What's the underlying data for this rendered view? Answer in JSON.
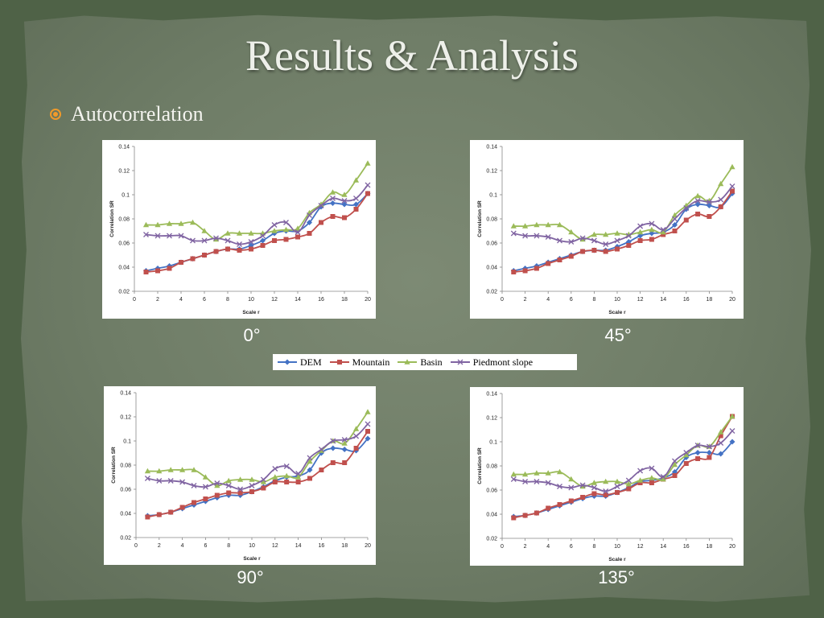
{
  "slide": {
    "title": "Results & Analysis",
    "bullet": "Autocorrelation"
  },
  "colors": {
    "DEM": "#4472c4",
    "Mountain": "#c0504d",
    "Basin": "#9bbb59",
    "Piedmont slope": "#8064a2"
  },
  "legend": [
    "DEM",
    "Mountain",
    "Basin",
    "Piedmont slope"
  ],
  "chart_data": [
    {
      "type": "line",
      "caption": "0°",
      "xlabel": "Scale r",
      "ylabel": "Correlation SR",
      "xlim": [
        0,
        20
      ],
      "ylim": [
        0.02,
        0.14
      ],
      "xticks": [
        0,
        2,
        4,
        6,
        8,
        10,
        12,
        14,
        16,
        18,
        20
      ],
      "yticks": [
        0.02,
        0.04,
        0.06,
        0.08,
        0.1,
        0.12,
        0.14
      ],
      "x": [
        1,
        2,
        3,
        4,
        5,
        6,
        7,
        8,
        9,
        10,
        11,
        12,
        13,
        14,
        15,
        16,
        17,
        18,
        19,
        20
      ],
      "series": [
        {
          "name": "DEM",
          "values": [
            0.037,
            0.039,
            0.041,
            0.044,
            0.047,
            0.05,
            0.053,
            0.055,
            0.055,
            0.058,
            0.062,
            0.068,
            0.07,
            0.07,
            0.077,
            0.09,
            0.093,
            0.092,
            0.092,
            0.101
          ]
        },
        {
          "name": "Mountain",
          "values": [
            0.036,
            0.037,
            0.039,
            0.044,
            0.047,
            0.05,
            0.053,
            0.055,
            0.054,
            0.055,
            0.058,
            0.062,
            0.063,
            0.065,
            0.068,
            0.077,
            0.082,
            0.081,
            0.088,
            0.101
          ]
        },
        {
          "name": "Basin",
          "values": [
            0.075,
            0.075,
            0.076,
            0.076,
            0.077,
            0.07,
            0.063,
            0.068,
            0.068,
            0.068,
            0.068,
            0.07,
            0.071,
            0.072,
            0.085,
            0.092,
            0.102,
            0.1,
            0.112,
            0.126
          ]
        },
        {
          "name": "Piedmont slope",
          "values": [
            0.067,
            0.066,
            0.066,
            0.066,
            0.062,
            0.062,
            0.064,
            0.062,
            0.059,
            0.061,
            0.066,
            0.075,
            0.077,
            0.069,
            0.083,
            0.091,
            0.097,
            0.095,
            0.097,
            0.108
          ]
        }
      ]
    },
    {
      "type": "line",
      "caption": "45°",
      "xlabel": "Scale r",
      "ylabel": "Correlation SR",
      "xlim": [
        0,
        20
      ],
      "ylim": [
        0.02,
        0.14
      ],
      "xticks": [
        0,
        2,
        4,
        6,
        8,
        10,
        12,
        14,
        16,
        18,
        20
      ],
      "yticks": [
        0.02,
        0.04,
        0.06,
        0.08,
        0.1,
        0.12,
        0.14
      ],
      "x": [
        1,
        2,
        3,
        4,
        5,
        6,
        7,
        8,
        9,
        10,
        11,
        12,
        13,
        14,
        15,
        16,
        17,
        18,
        19,
        20
      ],
      "series": [
        {
          "name": "DEM",
          "values": [
            0.037,
            0.039,
            0.041,
            0.044,
            0.047,
            0.05,
            0.053,
            0.054,
            0.054,
            0.057,
            0.061,
            0.066,
            0.068,
            0.069,
            0.075,
            0.088,
            0.092,
            0.091,
            0.09,
            0.101
          ]
        },
        {
          "name": "Mountain",
          "values": [
            0.036,
            0.037,
            0.039,
            0.043,
            0.046,
            0.049,
            0.053,
            0.054,
            0.053,
            0.055,
            0.058,
            0.062,
            0.063,
            0.067,
            0.07,
            0.079,
            0.084,
            0.082,
            0.09,
            0.103
          ]
        },
        {
          "name": "Basin",
          "values": [
            0.074,
            0.074,
            0.075,
            0.075,
            0.075,
            0.069,
            0.063,
            0.067,
            0.067,
            0.068,
            0.067,
            0.069,
            0.071,
            0.069,
            0.083,
            0.091,
            0.099,
            0.095,
            0.109,
            0.123
          ]
        },
        {
          "name": "Piedmont slope",
          "values": [
            0.068,
            0.066,
            0.066,
            0.065,
            0.062,
            0.061,
            0.064,
            0.062,
            0.059,
            0.062,
            0.066,
            0.074,
            0.076,
            0.071,
            0.08,
            0.089,
            0.095,
            0.094,
            0.096,
            0.107
          ]
        }
      ]
    },
    {
      "type": "line",
      "caption": "90°",
      "xlabel": "Scale r",
      "ylabel": "Correlation SR",
      "xlim": [
        0,
        20
      ],
      "ylim": [
        0.02,
        0.14
      ],
      "xticks": [
        0,
        2,
        4,
        6,
        8,
        10,
        12,
        14,
        16,
        18,
        20
      ],
      "yticks": [
        0.02,
        0.04,
        0.06,
        0.08,
        0.1,
        0.12,
        0.14
      ],
      "x": [
        1,
        2,
        3,
        4,
        5,
        6,
        7,
        8,
        9,
        10,
        11,
        12,
        13,
        14,
        15,
        16,
        17,
        18,
        19,
        20
      ],
      "series": [
        {
          "name": "DEM",
          "values": [
            0.038,
            0.039,
            0.041,
            0.044,
            0.047,
            0.05,
            0.053,
            0.055,
            0.055,
            0.058,
            0.062,
            0.067,
            0.07,
            0.071,
            0.076,
            0.09,
            0.094,
            0.093,
            0.092,
            0.102
          ]
        },
        {
          "name": "Mountain",
          "values": [
            0.037,
            0.039,
            0.041,
            0.045,
            0.049,
            0.052,
            0.055,
            0.057,
            0.057,
            0.058,
            0.061,
            0.066,
            0.066,
            0.066,
            0.069,
            0.076,
            0.082,
            0.082,
            0.094,
            0.108
          ]
        },
        {
          "name": "Basin",
          "values": [
            0.075,
            0.075,
            0.076,
            0.076,
            0.076,
            0.07,
            0.063,
            0.067,
            0.068,
            0.068,
            0.066,
            0.07,
            0.071,
            0.07,
            0.083,
            0.092,
            0.1,
            0.098,
            0.11,
            0.124
          ]
        },
        {
          "name": "Piedmont slope",
          "values": [
            0.069,
            0.067,
            0.067,
            0.066,
            0.063,
            0.062,
            0.065,
            0.063,
            0.06,
            0.063,
            0.068,
            0.077,
            0.079,
            0.073,
            0.086,
            0.093,
            0.1,
            0.101,
            0.104,
            0.114
          ]
        }
      ]
    },
    {
      "type": "line",
      "caption": "135°",
      "xlabel": "Scale r",
      "ylabel": "Correlation SR",
      "xlim": [
        0,
        20
      ],
      "ylim": [
        0.02,
        0.14
      ],
      "xticks": [
        0,
        2,
        4,
        6,
        8,
        10,
        12,
        14,
        16,
        18,
        20
      ],
      "yticks": [
        0.02,
        0.04,
        0.06,
        0.08,
        0.1,
        0.12,
        0.14
      ],
      "x": [
        1,
        2,
        3,
        4,
        5,
        6,
        7,
        8,
        9,
        10,
        11,
        12,
        13,
        14,
        15,
        16,
        17,
        18,
        19,
        20
      ],
      "series": [
        {
          "name": "DEM",
          "values": [
            0.038,
            0.039,
            0.041,
            0.044,
            0.047,
            0.05,
            0.053,
            0.055,
            0.055,
            0.058,
            0.062,
            0.067,
            0.068,
            0.07,
            0.075,
            0.087,
            0.091,
            0.091,
            0.09,
            0.1
          ]
        },
        {
          "name": "Mountain",
          "values": [
            0.037,
            0.039,
            0.041,
            0.045,
            0.048,
            0.051,
            0.054,
            0.057,
            0.056,
            0.058,
            0.061,
            0.066,
            0.066,
            0.069,
            0.072,
            0.082,
            0.086,
            0.087,
            0.105,
            0.121
          ]
        },
        {
          "name": "Basin",
          "values": [
            0.073,
            0.073,
            0.074,
            0.074,
            0.075,
            0.069,
            0.063,
            0.066,
            0.067,
            0.067,
            0.065,
            0.068,
            0.07,
            0.069,
            0.081,
            0.089,
            0.097,
            0.096,
            0.108,
            0.121
          ]
        },
        {
          "name": "Piedmont slope",
          "values": [
            0.069,
            0.067,
            0.067,
            0.066,
            0.063,
            0.062,
            0.064,
            0.062,
            0.059,
            0.063,
            0.068,
            0.076,
            0.078,
            0.071,
            0.084,
            0.091,
            0.097,
            0.096,
            0.099,
            0.109
          ]
        }
      ]
    }
  ]
}
